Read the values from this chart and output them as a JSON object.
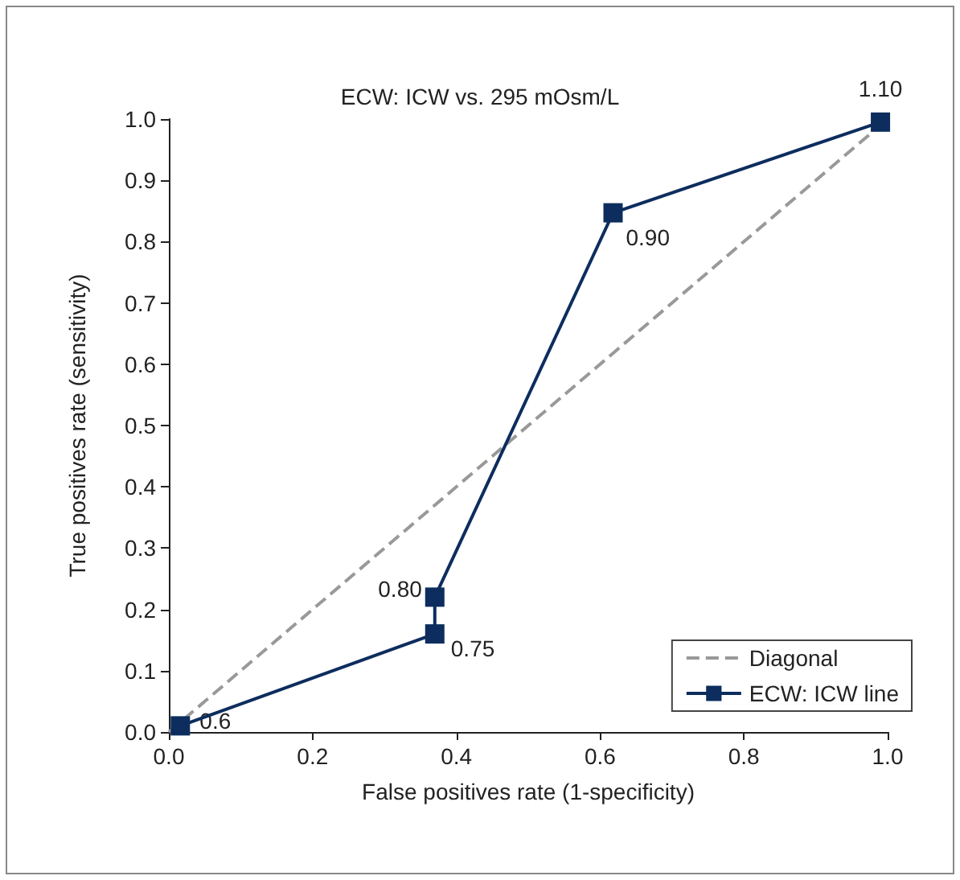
{
  "chart_data": {
    "type": "line",
    "title": "ECW: ICW vs. 295 mOsm/L",
    "xlabel": "False positives rate (1-specificity)",
    "ylabel": "True positives rate (sensitivity)",
    "series": [
      {
        "name": "Diagonal",
        "color": "#999999",
        "line_style": "dashed",
        "marker": "none",
        "x": [
          0,
          1
        ],
        "values": [
          0,
          1
        ]
      },
      {
        "name": "ECW: ICW line",
        "color": "#0d2d5e",
        "line_style": "solid",
        "marker": "square",
        "x": [
          0.016,
          0.37,
          0.37,
          0.618,
          0.99
        ],
        "values": [
          0.01,
          0.16,
          0.22,
          0.847,
          0.995
        ]
      }
    ],
    "annotations": [
      {
        "text": "0.6",
        "x": 0.016,
        "y": 0.01
      },
      {
        "text": "0.75",
        "x": 0.37,
        "y": 0.16
      },
      {
        "text": "0.80",
        "x": 0.37,
        "y": 0.22
      },
      {
        "text": "0.90",
        "x": 0.618,
        "y": 0.847
      },
      {
        "text": "1.10",
        "x": 0.99,
        "y": 0.995
      }
    ],
    "xlim": [
      0,
      1
    ],
    "ylim": [
      0,
      1
    ],
    "xticks": [
      {
        "value": 0,
        "label": "0.0"
      },
      {
        "value": 0.2,
        "label": "0.2"
      },
      {
        "value": 0.4,
        "label": "0.4"
      },
      {
        "value": 0.6,
        "label": "0.6"
      },
      {
        "value": 0.8,
        "label": "0.8"
      },
      {
        "value": 1,
        "label": "1.0"
      }
    ],
    "yticks": [
      {
        "value": 0,
        "label": "0.0"
      },
      {
        "value": 0.1,
        "label": "0.1"
      },
      {
        "value": 0.2,
        "label": "0.2"
      },
      {
        "value": 0.3,
        "label": "0.3"
      },
      {
        "value": 0.4,
        "label": "0.4"
      },
      {
        "value": 0.5,
        "label": "0.5"
      },
      {
        "value": 0.6,
        "label": "0.6"
      },
      {
        "value": 0.7,
        "label": "0.7"
      },
      {
        "value": 0.8,
        "label": "0.8"
      },
      {
        "value": 0.9,
        "label": "0.9"
      },
      {
        "value": 1,
        "label": "1.0"
      }
    ],
    "grid": false,
    "legend": "bottom right"
  }
}
